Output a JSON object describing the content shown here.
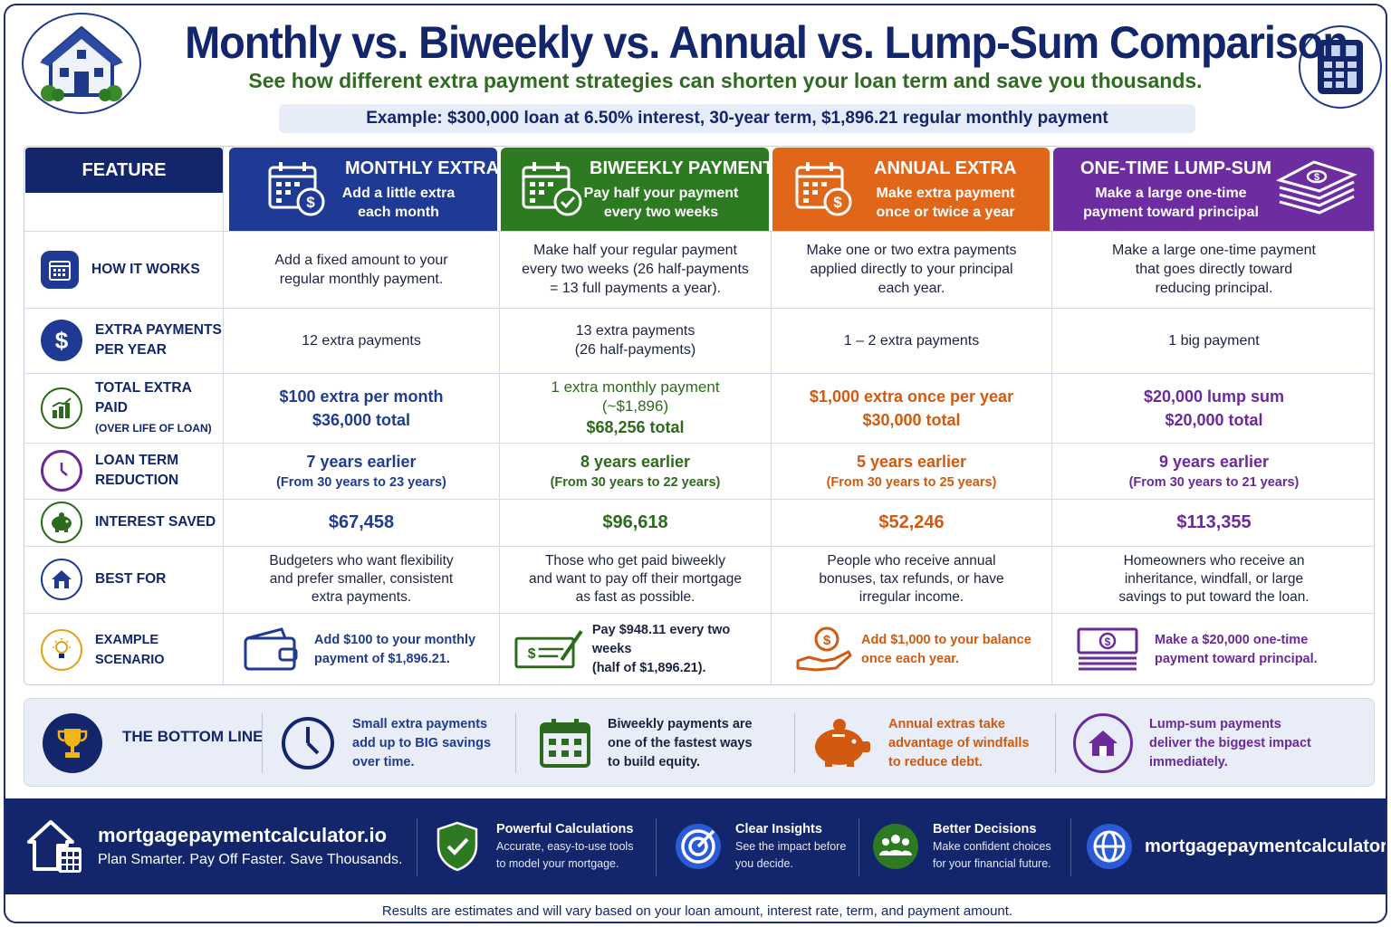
{
  "header": {
    "title": "Monthly vs. Biweekly vs. Annual vs. Lump-Sum Comparison",
    "subtitle": "See how different extra payment strategies can shorten your loan term and save you thousands.",
    "example": "Example: $300,000 loan at 6.50% interest, 30-year term, $1,896.21 regular monthly payment"
  },
  "colors": {
    "navy": "#13256b",
    "blue": "#1f3c8f",
    "green": "#2e6a1d",
    "orange": "#d15a10",
    "purple": "#6a2a9b"
  },
  "feature_header": "FEATURE",
  "columns": [
    {
      "title": "MONTHLY EXTRA",
      "desc_line1": "Add a little extra",
      "desc_line2": "each month",
      "color": "#1e3a94",
      "icon": "calendar-dollar-icon"
    },
    {
      "title": "BIWEEKLY PAYMENTS",
      "desc_line1": "Pay half your payment",
      "desc_line2": "every two weeks",
      "color": "#2e7a23",
      "icon": "calendar-check-icon"
    },
    {
      "title": "ANNUAL EXTRA",
      "desc_line1": "Make extra payment",
      "desc_line2": "once or twice a year",
      "color": "#e0661a",
      "icon": "calendar-dollar-icon"
    },
    {
      "title": "ONE-TIME LUMP-SUM",
      "desc_line1": "Make a large one-time",
      "desc_line2": "payment toward principal",
      "color": "#6d2c9f",
      "icon": "money-stack-icon"
    }
  ],
  "rows": {
    "how_it_works": {
      "label": "HOW IT WORKS",
      "cells": [
        [
          "Add a fixed amount to your",
          "regular monthly payment."
        ],
        [
          "Make half your regular payment",
          "every two weeks (26 half-payments",
          "= 13 full payments a year)."
        ],
        [
          "Make one or two extra payments",
          "applied directly to your principal",
          "each year."
        ],
        [
          "Make a large one-time payment",
          "that goes directly toward",
          "reducing principal."
        ]
      ]
    },
    "extra_payments": {
      "label_line1": "EXTRA PAYMENTS",
      "label_line2": "PER YEAR",
      "cells": [
        [
          "12 extra payments"
        ],
        [
          "13 extra payments",
          "(26 half-payments)"
        ],
        [
          "1 – 2 extra payments"
        ],
        [
          "1 big payment"
        ]
      ]
    },
    "total_extra": {
      "label_line1": "TOTAL EXTRA PAID",
      "label_line2": "(OVER LIFE OF LOAN)",
      "cells": [
        {
          "line1": "$100 extra per month",
          "line2": "$36,000 total"
        },
        {
          "line1": "1 extra monthly payment",
          "line1b": "(~$1,896)",
          "line2": "$68,256 total"
        },
        {
          "line1": "$1,000 extra once per year",
          "line2": "$30,000 total"
        },
        {
          "line1": "$20,000 lump sum",
          "line2": "$20,000 total"
        }
      ]
    },
    "term_reduction": {
      "label_line1": "LOAN TERM",
      "label_line2": "REDUCTION",
      "cells": [
        {
          "main": "7 years earlier",
          "sub": "(From 30 years to 23 years)"
        },
        {
          "main": "8 years earlier",
          "sub": "(From 30 years to 22 years)"
        },
        {
          "main": "5 years earlier",
          "sub": "(From 30 years to 25 years)"
        },
        {
          "main": "9 years earlier",
          "sub": "(From 30 years to 21 years)"
        }
      ]
    },
    "interest_saved": {
      "label": "INTEREST SAVED",
      "cells": [
        "$67,458",
        "$96,618",
        "$52,246",
        "$113,355"
      ]
    },
    "best_for": {
      "label": "BEST FOR",
      "cells": [
        [
          "Budgeters who want flexibility",
          "and prefer smaller, consistent",
          "extra payments."
        ],
        [
          "Those who get paid biweekly",
          "and want to pay off their mortgage",
          "as fast as possible."
        ],
        [
          "People who receive annual",
          "bonuses, tax refunds, or have",
          "irregular income."
        ],
        [
          "Homeowners who receive an",
          "inheritance, windfall, or large",
          "savings to put toward the loan."
        ]
      ]
    },
    "example_scenario": {
      "label": "EXAMPLE SCENARIO",
      "cells": [
        [
          "Add $100 to your monthly",
          "payment of $1,896.21."
        ],
        [
          "Pay $948.11 every two weeks",
          "(half of $1,896.21)."
        ],
        [
          "Add $1,000 to your balance",
          "once each year."
        ],
        [
          "Make a $20,000 one-time",
          "payment toward principal."
        ]
      ]
    }
  },
  "bottom_line": {
    "label": "THE BOTTOM LINE",
    "items": [
      [
        "Small extra payments",
        "add up to BIG savings",
        "over time."
      ],
      [
        "Biweekly payments are",
        "one of the fastest ways",
        "to build equity."
      ],
      [
        "Annual extras take",
        "advantage of windfalls",
        "to reduce debt."
      ],
      [
        "Lump-sum payments",
        "deliver the biggest impact",
        "immediately."
      ]
    ]
  },
  "footer": {
    "brand": "mortgagepaymentcalculator.io",
    "tagline": "Plan Smarter. Pay Off Faster. Save Thousands.",
    "features": [
      {
        "title": "Powerful Calculations",
        "line1": "Accurate, easy-to-use tools",
        "line2": "to model your mortgage."
      },
      {
        "title": "Clear Insights",
        "line1": "See the impact before",
        "line2": "you decide."
      },
      {
        "title": "Better Decisions",
        "line1": "Make confident choices",
        "line2": "for your financial future."
      }
    ],
    "site": "mortgagepaymentcalculator.io"
  },
  "disclaimer": "Results are estimates and will vary based on your loan amount, interest rate, term, and payment amount."
}
